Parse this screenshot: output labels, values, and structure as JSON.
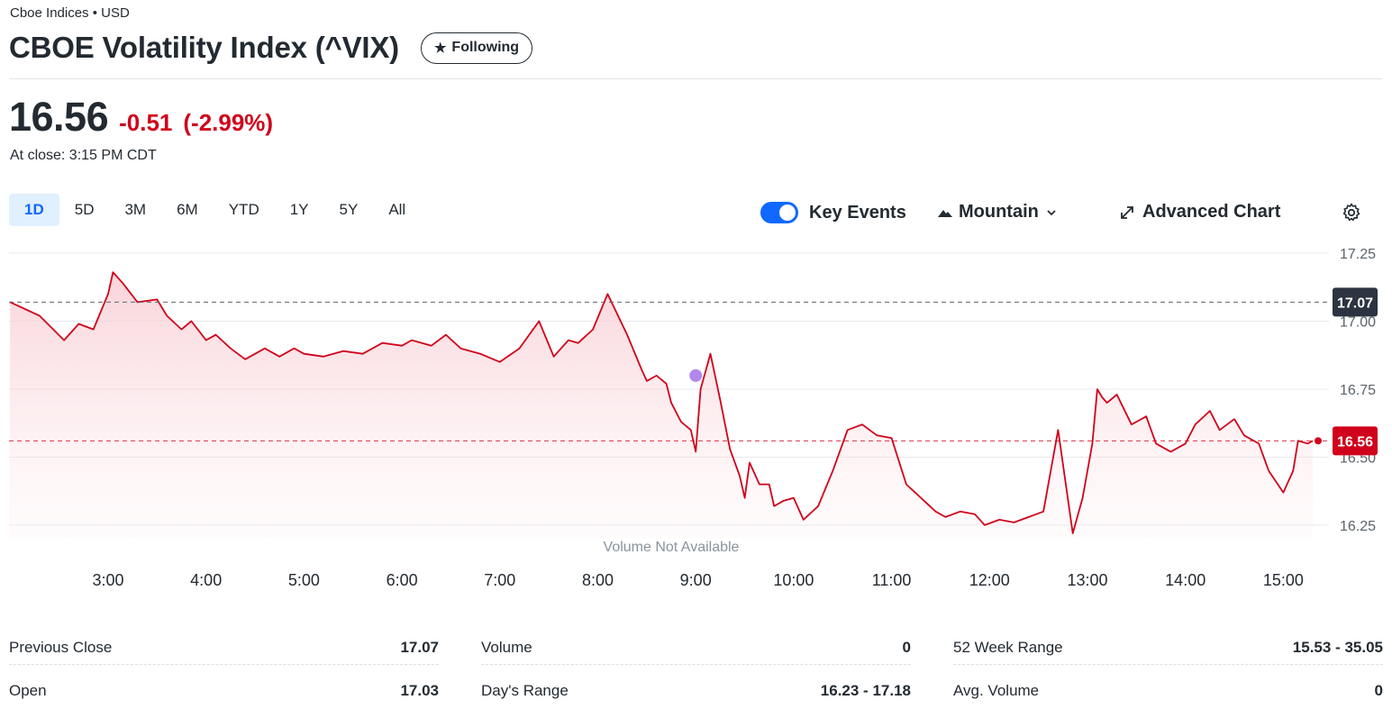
{
  "header": {
    "exchange": "Cboe Indices • USD",
    "title": "CBOE Volatility Index (^VIX)",
    "follow_label": "Following"
  },
  "quote": {
    "price": "16.56",
    "change": "-0.51",
    "change_pct": "(-2.99%)",
    "close_time": "At close: 3:15 PM CDT"
  },
  "ranges": [
    "1D",
    "5D",
    "3M",
    "6M",
    "YTD",
    "1Y",
    "5Y",
    "All"
  ],
  "active_range": "1D",
  "controls": {
    "key_events_label": "Key Events",
    "chart_type_label": "Mountain",
    "advanced_label": "Advanced Chart"
  },
  "colors": {
    "accent": "#0f69ff",
    "down": "#d0021b",
    "line": "#d0021b",
    "event_dot": "#b388eb"
  },
  "icons": [
    "star-icon",
    "mountain-icon",
    "chevron-down-icon",
    "expand-icon",
    "gear-icon"
  ],
  "chart_data": {
    "type": "area",
    "x_ticks": [
      "3:00",
      "4:00",
      "5:00",
      "6:00",
      "7:00",
      "8:00",
      "9:00",
      "10:00",
      "11:00",
      "12:00",
      "13:00",
      "14:00",
      "15:00"
    ],
    "y_ticks": [
      17.25,
      17.0,
      16.75,
      16.5,
      16.25
    ],
    "ylim": [
      16.2,
      17.28
    ],
    "grid": true,
    "prev_close": 17.07,
    "prev_close_label": "17.07",
    "last": 16.56,
    "last_label": "16.56",
    "volume_note": "Volume Not Available",
    "x": [
      2.0,
      2.3,
      2.55,
      2.7,
      2.85,
      3.0,
      3.05,
      3.15,
      3.3,
      3.5,
      3.6,
      3.75,
      3.85,
      4.0,
      4.1,
      4.25,
      4.4,
      4.6,
      4.75,
      4.9,
      5.0,
      5.2,
      5.4,
      5.6,
      5.8,
      6.0,
      6.1,
      6.3,
      6.45,
      6.6,
      6.8,
      7.0,
      7.2,
      7.4,
      7.55,
      7.7,
      7.8,
      7.95,
      8.1,
      8.3,
      8.45,
      8.5,
      8.6,
      8.7,
      8.75,
      8.85,
      8.95,
      9.0,
      9.05,
      9.15,
      9.25,
      9.35,
      9.45,
      9.5,
      9.55,
      9.65,
      9.75,
      9.8,
      9.9,
      10.0,
      10.1,
      10.25,
      10.4,
      10.55,
      10.7,
      10.85,
      11.0,
      11.15,
      11.3,
      11.45,
      11.55,
      11.7,
      11.85,
      11.95,
      12.1,
      12.25,
      12.4,
      12.55,
      12.7,
      12.85,
      12.95,
      13.0,
      13.05,
      13.1,
      13.15,
      13.2,
      13.3,
      13.45,
      13.6,
      13.7,
      13.85,
      14.0,
      14.1,
      14.25,
      14.35,
      14.5,
      14.6,
      14.75,
      14.85,
      15.0,
      15.1,
      15.15,
      15.25,
      15.3
    ],
    "values": [
      17.07,
      17.02,
      16.93,
      16.99,
      16.97,
      17.1,
      17.18,
      17.14,
      17.07,
      17.08,
      17.02,
      16.97,
      17.0,
      16.93,
      16.95,
      16.9,
      16.86,
      16.9,
      16.87,
      16.9,
      16.88,
      16.87,
      16.89,
      16.88,
      16.92,
      16.91,
      16.93,
      16.91,
      16.95,
      16.9,
      16.88,
      16.85,
      16.9,
      17.0,
      16.87,
      16.93,
      16.92,
      16.97,
      17.1,
      16.95,
      16.82,
      16.78,
      16.8,
      16.77,
      16.7,
      16.63,
      16.6,
      16.52,
      16.75,
      16.88,
      16.71,
      16.53,
      16.43,
      16.35,
      16.48,
      16.4,
      16.4,
      16.32,
      16.34,
      16.35,
      16.27,
      16.32,
      16.45,
      16.6,
      16.62,
      16.58,
      16.57,
      16.4,
      16.35,
      16.3,
      16.28,
      16.3,
      16.29,
      16.25,
      16.27,
      16.26,
      16.28,
      16.3,
      16.6,
      16.22,
      16.35,
      16.45,
      16.55,
      16.75,
      16.72,
      16.7,
      16.73,
      16.62,
      16.65,
      16.55,
      16.52,
      16.55,
      16.62,
      16.67,
      16.6,
      16.64,
      16.58,
      16.55,
      16.45,
      16.37,
      16.45,
      16.56,
      16.55,
      16.56
    ]
  },
  "stats": [
    [
      {
        "label": "Previous Close",
        "value": "17.07"
      },
      {
        "label": "Open",
        "value": "17.03"
      }
    ],
    [
      {
        "label": "Volume",
        "value": "0"
      },
      {
        "label": "Day's Range",
        "value": "16.23 - 17.18"
      }
    ],
    [
      {
        "label": "52 Week Range",
        "value": "15.53 - 35.05"
      },
      {
        "label": "Avg. Volume",
        "value": "0"
      }
    ]
  ]
}
